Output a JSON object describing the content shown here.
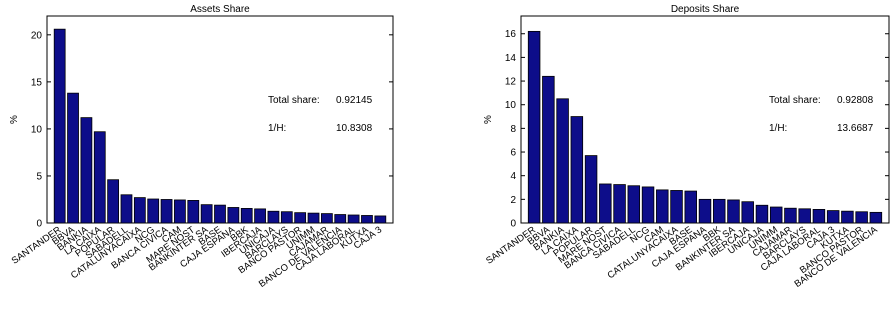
{
  "chart_data": [
    {
      "type": "bar",
      "title": "Assets Share",
      "ylabel": "%",
      "ylim": [
        0,
        22
      ],
      "yticks": [
        0,
        5,
        10,
        15,
        20
      ],
      "bar_color": "#0d0d8a",
      "categories": [
        "SANTANDER",
        "BBVA",
        "BANKIA",
        "LA CAIXA",
        "POPULAR",
        "SABADELL",
        "CATALUNYACAIXA",
        "NCG",
        "BANCA CIVICA",
        "CAM",
        "MARE NOST",
        "BANKINTER SA",
        "BASE",
        "CAJA ESPANA",
        "BBK",
        "IBERCAJA",
        "UNICAJA",
        "BARCLAYS",
        "BANCO PASTOR",
        "UNIMM",
        "CAJAMAR",
        "BANCO DE VALENCIA",
        "CAJA LABORAL",
        "KUTXA",
        "CAJA 3"
      ],
      "values": [
        20.6,
        13.8,
        11.2,
        9.7,
        4.6,
        3.0,
        2.7,
        2.55,
        2.5,
        2.45,
        2.4,
        1.95,
        1.9,
        1.65,
        1.55,
        1.5,
        1.25,
        1.2,
        1.1,
        1.05,
        1.0,
        0.9,
        0.85,
        0.8,
        0.75
      ],
      "annotations": [
        {
          "label": "Total share:",
          "value": "0.92145"
        },
        {
          "label": "1/H:",
          "value": "10.8308"
        }
      ]
    },
    {
      "type": "bar",
      "title": "Deposits Share",
      "ylabel": "%",
      "ylim": [
        0,
        17.5
      ],
      "yticks": [
        0,
        2,
        4,
        6,
        8,
        10,
        12,
        14,
        16
      ],
      "bar_color": "#0d0d8a",
      "categories": [
        "SANTANDER",
        "BBVA",
        "BANKIA",
        "LA CAIXA",
        "POPULAR",
        "MARE NOST",
        "BANCA CIVICA",
        "SABADELL",
        "NCG",
        "CAM",
        "CATALUNYACAIXA",
        "BASE",
        "CAJA ESPANA",
        "BBK",
        "BANKINTER SA",
        "IBERCAJA",
        "UNICAJA",
        "UNIMM",
        "CAJAMAR",
        "BARCLAYS",
        "CAJA LABORAL",
        "CAJA 3",
        "KUTXA",
        "BANCO PASTOR",
        "BANCO DE VALENCIA"
      ],
      "values": [
        16.2,
        12.4,
        10.5,
        9.0,
        5.7,
        3.3,
        3.25,
        3.15,
        3.05,
        2.8,
        2.75,
        2.7,
        2.0,
        2.0,
        1.95,
        1.8,
        1.5,
        1.35,
        1.25,
        1.2,
        1.15,
        1.05,
        1.0,
        0.95,
        0.9
      ],
      "annotations": [
        {
          "label": "Total share:",
          "value": "0.92808"
        },
        {
          "label": "1/H:",
          "value": "13.6687"
        }
      ]
    }
  ]
}
